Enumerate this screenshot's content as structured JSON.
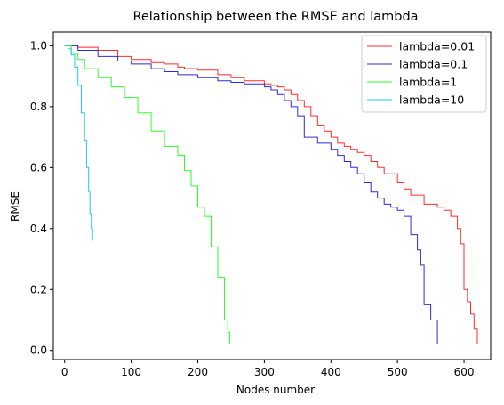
{
  "chart_data": {
    "type": "line",
    "title": "Relationship between the RMSE and lambda",
    "xlabel": "Nodes number",
    "ylabel": "RMSE",
    "xlim": [
      -17,
      640
    ],
    "ylim": [
      -0.03,
      1.045
    ],
    "xticks": [
      0,
      100,
      200,
      300,
      400,
      500,
      600
    ],
    "yticks": [
      0.0,
      0.2,
      0.4,
      0.6,
      0.8,
      1.0
    ],
    "ytick_labels": [
      "0.0",
      "0.2",
      "0.4",
      "0.6",
      "0.8",
      "1.0"
    ],
    "grid": false,
    "legend_position": "upper right",
    "series": [
      {
        "name": "lambda=0.01",
        "color": "#ff2b2b",
        "x": [
          0,
          20,
          50,
          80,
          100,
          130,
          150,
          170,
          180,
          200,
          230,
          250,
          270,
          300,
          310,
          320,
          330,
          340,
          350,
          360,
          370,
          380,
          390,
          400,
          410,
          420,
          430,
          440,
          450,
          460,
          470,
          480,
          500,
          510,
          520,
          540,
          560,
          570,
          580,
          590,
          595,
          600,
          605,
          610,
          615,
          620
        ],
        "y": [
          1.0,
          0.995,
          0.985,
          0.965,
          0.955,
          0.945,
          0.94,
          0.93,
          0.925,
          0.92,
          0.905,
          0.895,
          0.885,
          0.875,
          0.87,
          0.865,
          0.855,
          0.84,
          0.82,
          0.8,
          0.77,
          0.74,
          0.72,
          0.7,
          0.68,
          0.67,
          0.66,
          0.65,
          0.64,
          0.62,
          0.6,
          0.58,
          0.55,
          0.53,
          0.51,
          0.48,
          0.47,
          0.46,
          0.44,
          0.4,
          0.35,
          0.2,
          0.16,
          0.12,
          0.07,
          0.02
        ]
      },
      {
        "name": "lambda=0.1",
        "color": "#2b2bdc",
        "x": [
          0,
          20,
          50,
          80,
          100,
          130,
          150,
          170,
          200,
          230,
          250,
          270,
          300,
          310,
          320,
          330,
          340,
          350,
          360,
          380,
          400,
          410,
          420,
          430,
          440,
          450,
          460,
          470,
          480,
          490,
          500,
          510,
          520,
          530,
          535,
          540,
          550,
          560
        ],
        "y": [
          1.0,
          0.985,
          0.965,
          0.95,
          0.94,
          0.925,
          0.915,
          0.905,
          0.895,
          0.885,
          0.88,
          0.875,
          0.865,
          0.855,
          0.84,
          0.82,
          0.8,
          0.77,
          0.7,
          0.68,
          0.66,
          0.64,
          0.62,
          0.6,
          0.58,
          0.55,
          0.52,
          0.5,
          0.48,
          0.47,
          0.46,
          0.44,
          0.38,
          0.33,
          0.28,
          0.15,
          0.1,
          0.02
        ]
      },
      {
        "name": "lambda=1",
        "color": "#2bff2b",
        "x": [
          0,
          10,
          20,
          30,
          50,
          70,
          90,
          110,
          130,
          150,
          170,
          180,
          190,
          200,
          210,
          220,
          230,
          240,
          245,
          248
        ],
        "y": [
          1.0,
          0.975,
          0.955,
          0.925,
          0.895,
          0.865,
          0.83,
          0.78,
          0.72,
          0.67,
          0.64,
          0.59,
          0.54,
          0.47,
          0.44,
          0.34,
          0.24,
          0.1,
          0.06,
          0.02
        ]
      },
      {
        "name": "lambda=10",
        "color": "#22c8f0",
        "x": [
          0,
          5,
          10,
          15,
          20,
          25,
          30,
          33,
          36,
          38,
          40,
          42
        ],
        "y": [
          1.0,
          0.99,
          0.97,
          0.93,
          0.87,
          0.78,
          0.69,
          0.6,
          0.52,
          0.45,
          0.4,
          0.36
        ]
      }
    ]
  }
}
